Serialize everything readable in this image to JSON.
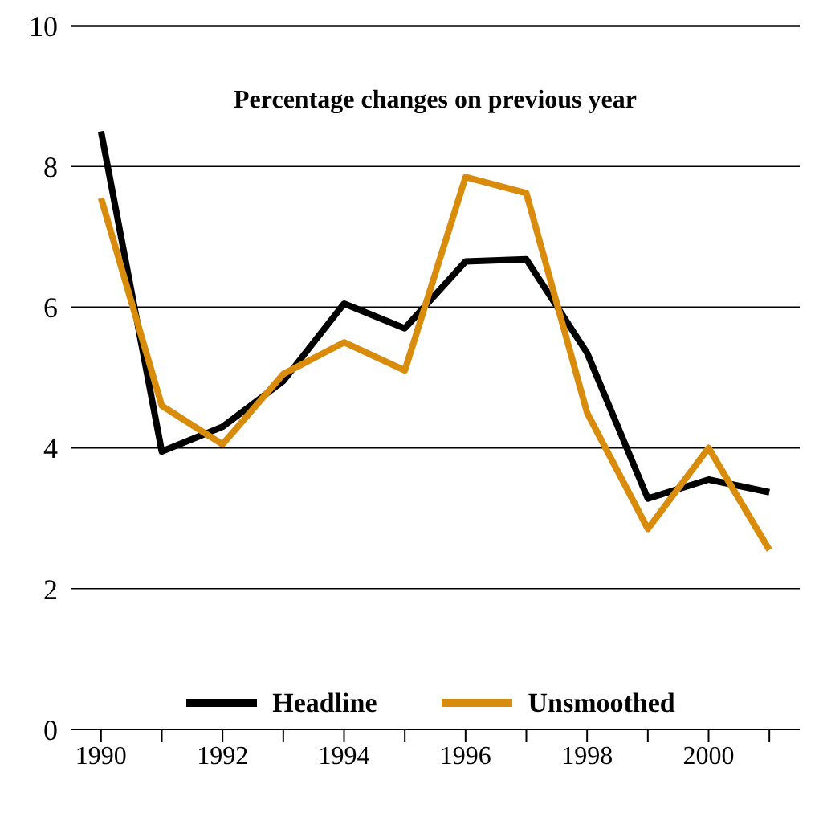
{
  "chart_data": {
    "type": "line",
    "title": "Percentage changes on previous year",
    "x": [
      1990,
      1991,
      1992,
      1993,
      1994,
      1995,
      1996,
      1997,
      1998,
      1999,
      2000,
      2001
    ],
    "series": [
      {
        "name": "Headline",
        "color": "#000000",
        "values": [
          8.5,
          3.95,
          4.3,
          4.95,
          6.05,
          5.7,
          6.65,
          6.68,
          5.35,
          3.28,
          3.55,
          3.37
        ]
      },
      {
        "name": "Unsmoothed",
        "color": "#d98c0b",
        "values": [
          7.55,
          4.6,
          4.05,
          5.05,
          5.5,
          5.1,
          7.85,
          7.62,
          4.5,
          2.85,
          4.0,
          2.55
        ]
      }
    ],
    "xlim": [
      1989.5,
      2001.5
    ],
    "xticks": [
      1990,
      {
        "value": 1991,
        "label": null
      },
      1992,
      {
        "value": 1993,
        "label": null
      },
      1994,
      {
        "value": 1995,
        "label": null
      },
      1996,
      {
        "value": 1997,
        "label": null
      },
      1998,
      {
        "value": 1999,
        "label": null
      },
      2000,
      {
        "value": 2001,
        "label": null
      }
    ],
    "ylim": [
      0,
      10
    ],
    "yticks": [
      0,
      2,
      4,
      6,
      8,
      10
    ],
    "grid": "y",
    "legend": "bottom",
    "marker": "none",
    "line_style": "solid"
  }
}
